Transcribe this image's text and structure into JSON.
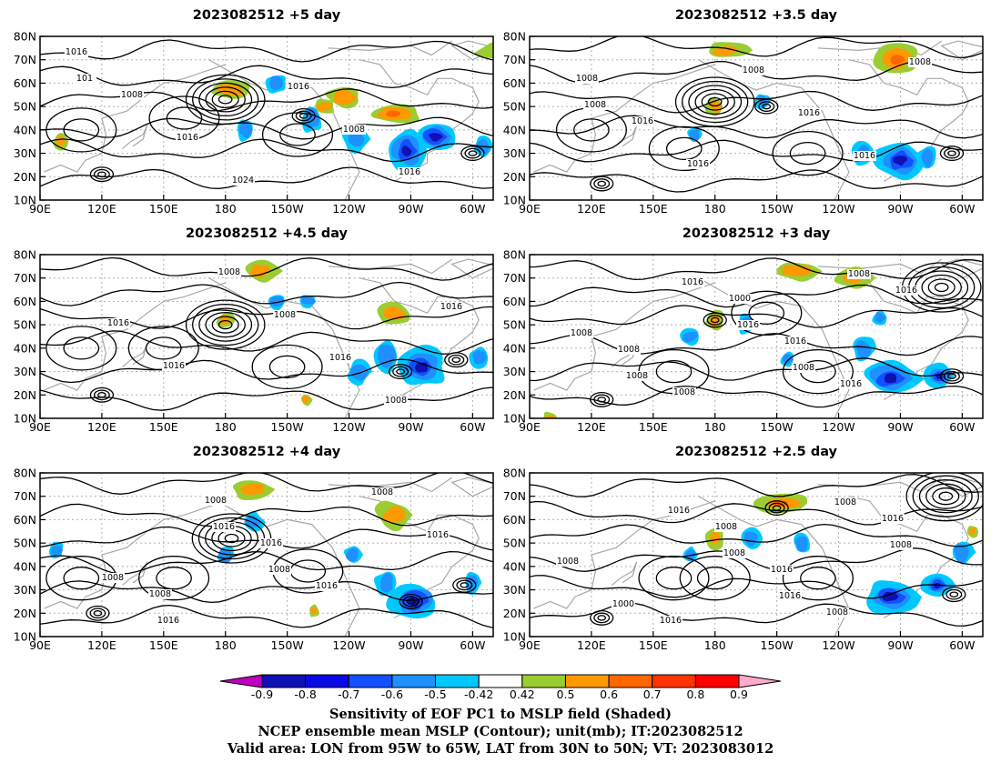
{
  "panels": [
    {
      "title": "2023082512 +5 day",
      "contour_labels": [
        "1016",
        "1008",
        "1016",
        "1024",
        "1016",
        "1008",
        "1016",
        "101"
      ],
      "pos_patches": [
        [
          320,
          74,
          20,
          5
        ],
        [
          183,
          57,
          12,
          5
        ],
        [
          237,
          54,
          10,
          5
        ],
        [
          262,
          47,
          15,
          5
        ],
        [
          228,
          50,
          6,
          4
        ],
        [
          100,
          35,
          4,
          4
        ]
      ],
      "neg_patches": [
        [
          282,
          37,
          14,
          8
        ],
        [
          268,
          31,
          10,
          10
        ],
        [
          205,
          60,
          6,
          5
        ],
        [
          222,
          45,
          6,
          7
        ],
        [
          190,
          40,
          5,
          6
        ],
        [
          243,
          36,
          7,
          6
        ],
        [
          305,
          33,
          5,
          5
        ]
      ],
      "lows": [
        [
          180,
          53
        ],
        [
          120,
          21
        ],
        [
          218,
          46
        ],
        [
          300,
          30
        ]
      ],
      "highs": [
        [
          215,
          38
        ],
        [
          160,
          45
        ],
        [
          110,
          40
        ]
      ]
    },
    {
      "title": "2023082512 +3.5 day",
      "contour_labels": [
        "1008",
        "1016",
        "1016",
        "1008",
        "1016",
        "1016",
        "1008",
        "1008"
      ],
      "pos_patches": [
        [
          268,
          70,
          14,
          8
        ],
        [
          185,
          74,
          12,
          4
        ],
        [
          180,
          50,
          5,
          5
        ]
      ],
      "neg_patches": [
        [
          270,
          27,
          14,
          9
        ],
        [
          203,
          52,
          4,
          4
        ],
        [
          170,
          38,
          4,
          4
        ],
        [
          252,
          30,
          6,
          6
        ],
        [
          283,
          28,
          5,
          6
        ]
      ],
      "lows": [
        [
          180,
          52
        ],
        [
          125,
          17
        ],
        [
          295,
          30
        ],
        [
          205,
          50
        ]
      ],
      "highs": [
        [
          225,
          30
        ],
        [
          165,
          32
        ],
        [
          120,
          40
        ]
      ]
    },
    {
      "title": "2023082512 +4.5 day",
      "contour_labels": [
        "1016",
        "1016",
        "1008",
        "1008",
        "1016",
        "1008",
        "1016"
      ],
      "pos_patches": [
        [
          197,
          73,
          10,
          5
        ],
        [
          262,
          55,
          9,
          5
        ],
        [
          180,
          52,
          5,
          4
        ],
        [
          219,
          18,
          3,
          3
        ]
      ],
      "neg_patches": [
        [
          275,
          32,
          14,
          10
        ],
        [
          258,
          36,
          7,
          8
        ],
        [
          205,
          60,
          5,
          4
        ],
        [
          220,
          60,
          5,
          3
        ],
        [
          245,
          30,
          6,
          6
        ],
        [
          303,
          36,
          5,
          5
        ]
      ],
      "lows": [
        [
          180,
          50
        ],
        [
          120,
          20
        ],
        [
          265,
          30
        ],
        [
          292,
          35
        ]
      ],
      "highs": [
        [
          210,
          32
        ],
        [
          150,
          40
        ],
        [
          110,
          40
        ]
      ]
    },
    {
      "title": "2023082512 +3 day",
      "contour_labels": [
        "1008",
        "1008",
        "1000",
        "1016",
        "1016",
        "1016",
        "1008",
        "1008",
        "1016",
        "1016",
        "1008",
        "1008"
      ],
      "pos_patches": [
        [
          220,
          73,
          12,
          5
        ],
        [
          247,
          70,
          10,
          5
        ],
        [
          180,
          52,
          5,
          5
        ],
        [
          100,
          10,
          5,
          3
        ]
      ],
      "neg_patches": [
        [
          265,
          27,
          15,
          8
        ],
        [
          289,
          28,
          8,
          6
        ],
        [
          252,
          40,
          6,
          6
        ],
        [
          168,
          45,
          5,
          4
        ],
        [
          195,
          50,
          5,
          5
        ],
        [
          215,
          35,
          4,
          4
        ],
        [
          260,
          53,
          4,
          4
        ]
      ],
      "lows": [
        [
          290,
          66
        ],
        [
          125,
          18
        ],
        [
          295,
          28
        ],
        [
          180,
          52
        ]
      ],
      "highs": [
        [
          230,
          30
        ],
        [
          160,
          30
        ],
        [
          205,
          55
        ]
      ]
    },
    {
      "title": "2023082512 +4 day",
      "contour_labels": [
        "1008",
        "1008",
        "1016",
        "1016",
        "1008",
        "1016",
        "1008",
        "1016",
        "1016",
        "1008"
      ],
      "pos_patches": [
        [
          193,
          73,
          12,
          5
        ],
        [
          262,
          62,
          10,
          7
        ],
        [
          223,
          21,
          3,
          3
        ]
      ],
      "neg_patches": [
        [
          272,
          25,
          14,
          9
        ],
        [
          258,
          33,
          6,
          6
        ],
        [
          193,
          59,
          6,
          5
        ],
        [
          180,
          45,
          5,
          5
        ],
        [
          242,
          45,
          5,
          5
        ],
        [
          300,
          33,
          4,
          5
        ],
        [
          98,
          47,
          4,
          4
        ]
      ],
      "lows": [
        [
          183,
          52
        ],
        [
          118,
          20
        ],
        [
          270,
          25
        ],
        [
          296,
          32
        ]
      ],
      "highs": [
        [
          220,
          38
        ],
        [
          155,
          35
        ],
        [
          110,
          35
        ]
      ]
    },
    {
      "title": "2023082512 +2.5 day",
      "contour_labels": [
        "1016",
        "1008",
        "1016",
        "1008",
        "1016",
        "1008",
        "1000",
        "1016",
        "1008",
        "1016",
        "1008",
        "1008"
      ],
      "pos_patches": [
        [
          212,
          67,
          15,
          5
        ],
        [
          180,
          52,
          5,
          5
        ],
        [
          305,
          55,
          3,
          3
        ]
      ],
      "neg_patches": [
        [
          265,
          27,
          15,
          8
        ],
        [
          288,
          32,
          8,
          5
        ],
        [
          197,
          52,
          6,
          5
        ],
        [
          168,
          45,
          4,
          4
        ],
        [
          222,
          50,
          5,
          5
        ],
        [
          300,
          46,
          6,
          6
        ]
      ],
      "lows": [
        [
          292,
          70
        ],
        [
          125,
          18
        ],
        [
          210,
          65
        ],
        [
          296,
          28
        ]
      ],
      "highs": [
        [
          230,
          35
        ],
        [
          160,
          35
        ],
        [
          180,
          35
        ]
      ]
    }
  ],
  "x_ticks": [
    "90E",
    "120E",
    "150E",
    "180",
    "150W",
    "120W",
    "90W",
    "60W"
  ],
  "y_ticks": [
    "80N",
    "70N",
    "60N",
    "50N",
    "40N",
    "30N",
    "20N",
    "10N"
  ],
  "colorbar": {
    "labels": [
      "-0.9",
      "-0.8",
      "-0.7",
      "-0.6",
      "-0.5",
      "-0.42",
      "0.42",
      "0.5",
      "0.6",
      "0.7",
      "0.8",
      "0.9"
    ],
    "colors": [
      "#c000c0",
      "#1010b4",
      "#0a0ae6",
      "#1450ff",
      "#1e90ff",
      "#00c8ff",
      "#ffffff",
      "#9acd32",
      "#ff9900",
      "#ff6600",
      "#ff3300",
      "#ff0000",
      "#ffaacc"
    ]
  },
  "caption": {
    "line1": "Sensitivity of EOF PC1 to MSLP field (Shaded)",
    "line2": "NCEP ensemble mean MSLP (Contour); unit(mb); IT:2023082512",
    "line3": "Valid area: LON from 95W to 65W, LAT from 30N to 50N; VT: 2023083012"
  }
}
